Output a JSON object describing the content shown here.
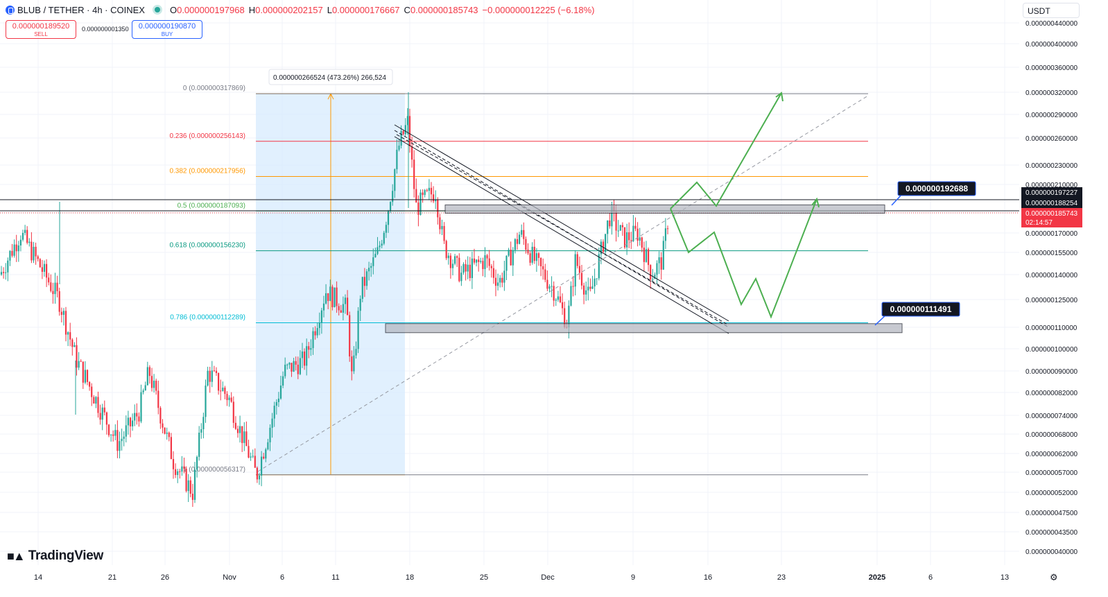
{
  "header": {
    "symbol": "BLUB / TETHER · 4h · COINEX",
    "open_label": "O",
    "open": "0.000000197968",
    "high_label": "H",
    "high": "0.000000202157",
    "low_label": "L",
    "low": "0.000000176667",
    "close_label": "C",
    "close": "0.000000185743",
    "change": "−0.000000012225 (−6.18%)"
  },
  "trade": {
    "sell_price": "0.000000189520",
    "sell_label": "SELL",
    "spread": "0.000000001350",
    "buy_price": "0.000000190870",
    "buy_label": "BUY"
  },
  "currency": "USDT",
  "logo_text": "TradingView",
  "colors": {
    "up": "#26a69a",
    "down": "#f23645",
    "range_fill": "#d7ebfd",
    "fib_0_618": "#089981",
    "fib_0_382": "#ff9800",
    "fib_0_236": "#f23645"
  },
  "chart_data": {
    "type": "candlestick",
    "symbol": "BLUB / TETHER",
    "interval": "4h",
    "y_scale": "log",
    "x_tick_labels": [
      "14",
      "21",
      "26",
      "Nov",
      "6",
      "11",
      "18",
      "25",
      "Dec",
      "9",
      "16",
      "23",
      "2025",
      "6",
      "13"
    ],
    "y_tick_labels": [
      "0.000000440000",
      "0.000000400000",
      "0.000000360000",
      "0.000000320000",
      "0.000000290000",
      "0.000000260000",
      "0.000000230000",
      "0.000000210000",
      "0.000000170000",
      "0.000000155000",
      "0.000000140000",
      "0.000000125000",
      "0.000000110000",
      "0.000000100000",
      "0.000000090000",
      "0.000000082000",
      "0.000000074000",
      "0.000000068000",
      "0.000000062000",
      "0.000000057000",
      "0.000000052000",
      "0.000000047500",
      "0.000000043500",
      "0.000000040000"
    ],
    "price_labels": [
      {
        "value": "0.000000197227",
        "style": "black"
      },
      {
        "value": "0.000000188254",
        "style": "black"
      },
      {
        "value": "0.000000185743",
        "style": "red",
        "countdown": "02:14:57"
      }
    ],
    "fibonacci": [
      {
        "label": "0 (0.000000317869)",
        "level": 0,
        "price": 3.17869e-07
      },
      {
        "label": "0.236 (0.000000256143)",
        "level": 0.236,
        "price": 2.56143e-07
      },
      {
        "label": "0.382 (0.000000217956)",
        "level": 0.382,
        "price": 2.17956e-07
      },
      {
        "label": "0.5 (0.000000187093)",
        "level": 0.5,
        "price": 1.87093e-07
      },
      {
        "label": "0.618 (0.000000156230)",
        "level": 0.618,
        "price": 1.5623e-07
      },
      {
        "label": "0.786 (0.000000112289)",
        "level": 0.786,
        "price": 1.12289e-07
      },
      {
        "label": "1 (0.000000056317)",
        "level": 1,
        "price": 5.6317e-08
      }
    ],
    "measure_label": "0.000000266524 (473.26%) 266,524",
    "callouts": [
      "0.000000192688",
      "0.000000111491"
    ],
    "zones": [
      1.92688e-07,
      1.11491e-07
    ],
    "key_points": [
      {
        "date": "Oct 28",
        "price": 5.2e-08
      },
      {
        "date": "Nov 3",
        "price": 5.6e-08
      },
      {
        "date": "Nov 13",
        "price": 8.5e-08
      },
      {
        "date": "Nov 17",
        "price": 3e-07
      },
      {
        "date": "Dec 2",
        "price": 1.1e-07
      },
      {
        "date": "Dec 10",
        "price": 1.35e-07
      },
      {
        "date": "Dec 11",
        "price": 1.86e-07
      }
    ]
  }
}
